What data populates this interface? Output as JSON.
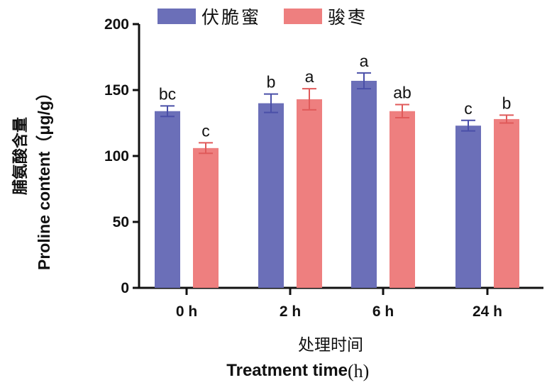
{
  "chart_data": {
    "type": "bar",
    "categories": [
      "0 h",
      "2 h",
      "6 h",
      "24 h"
    ],
    "series": [
      {
        "name": "伏脆蜜",
        "color": "#6b6fb8",
        "values": [
          134,
          140,
          157,
          123
        ],
        "errors": [
          4,
          7,
          6,
          4
        ],
        "letters": [
          "bc",
          "b",
          "a",
          "c"
        ]
      },
      {
        "name": "骏枣",
        "color": "#ee7f7f",
        "values": [
          106,
          143,
          134,
          128
        ],
        "errors": [
          4,
          8,
          5,
          3
        ],
        "letters": [
          "c",
          "a",
          "ab",
          "b"
        ]
      }
    ],
    "ylim": [
      0,
      200
    ],
    "yticks": [
      0,
      50,
      100,
      150,
      200
    ],
    "ylabel_cn": "脯氨酸含量",
    "ylabel_en": "Proline content（μg/g）",
    "xlabel_cn": "处理时间",
    "xlabel_en": "Treatment time",
    "xlabel_unit": "(h)",
    "legend_position": "top",
    "error_bar_color_series1": "#4a4fa8",
    "error_bar_color_series2": "#e05a5a"
  }
}
